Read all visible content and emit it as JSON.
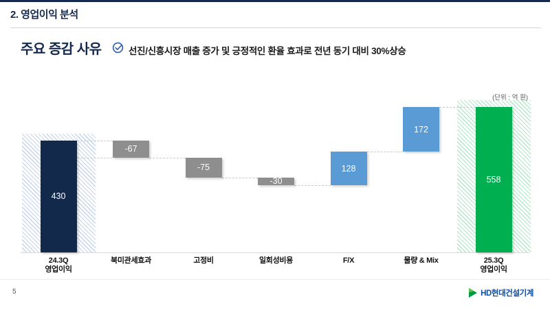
{
  "slide": {
    "title": "2. 영업이익 분석",
    "section_heading": "주요 증감 사유",
    "callout": "선진/신흥시장 매출 증가 및 긍정적인 환율 효과로 전년 동기 대비 30%상승",
    "unit_label": "(단위 : 억 원)",
    "page_number": "5",
    "logo_text": "HD현대건설기계"
  },
  "colors": {
    "accent_navy": "#15294e",
    "bar_navy": "#13294b",
    "bar_gray": "#8e8e8e",
    "bar_blue": "#5b9bd5",
    "bar_green": "#00b050",
    "band_blue": "#4472c4",
    "band_green": "#00b050",
    "connector": "#c9c9c9",
    "logo_blue": "#0b4ea2",
    "logo_green": "#00a94f"
  },
  "chart_data": {
    "type": "waterfall",
    "title": "영업이익 분석 waterfall",
    "unit": "억 원",
    "categories": [
      "24.3Q 영업이익",
      "북미관세효과",
      "고정비",
      "일회성비용",
      "F/X",
      "물량 & Mix",
      "25.3Q 영업이익"
    ],
    "values": [
      430,
      -67,
      -75,
      -30,
      128,
      172,
      558
    ],
    "kinds": [
      "total",
      "decrease",
      "decrease",
      "decrease",
      "increase",
      "increase",
      "total"
    ],
    "bar_labels": [
      "430",
      "-67",
      "-75",
      "-30",
      "128",
      "172",
      "558"
    ],
    "category_lines": [
      [
        "24.3Q",
        "영업이익"
      ],
      [
        "북미관세효과"
      ],
      [
        "고정비"
      ],
      [
        "일회성비용"
      ],
      [
        "F/X"
      ],
      [
        "물량 & Mix"
      ],
      [
        "25.3Q",
        "영업이익"
      ]
    ],
    "color_keys": [
      "bar_navy",
      "bar_gray",
      "bar_gray",
      "bar_gray",
      "bar_blue",
      "bar_blue",
      "bar_green"
    ],
    "bands": [
      {
        "step": 0,
        "color_key": "band_blue"
      },
      {
        "step": 6,
        "color_key": "band_green"
      }
    ],
    "extra_connectors": [
      {
        "prev": 0,
        "step": 1,
        "level": "end"
      }
    ],
    "baseline_value": 0,
    "grid": false,
    "legend": false
  }
}
